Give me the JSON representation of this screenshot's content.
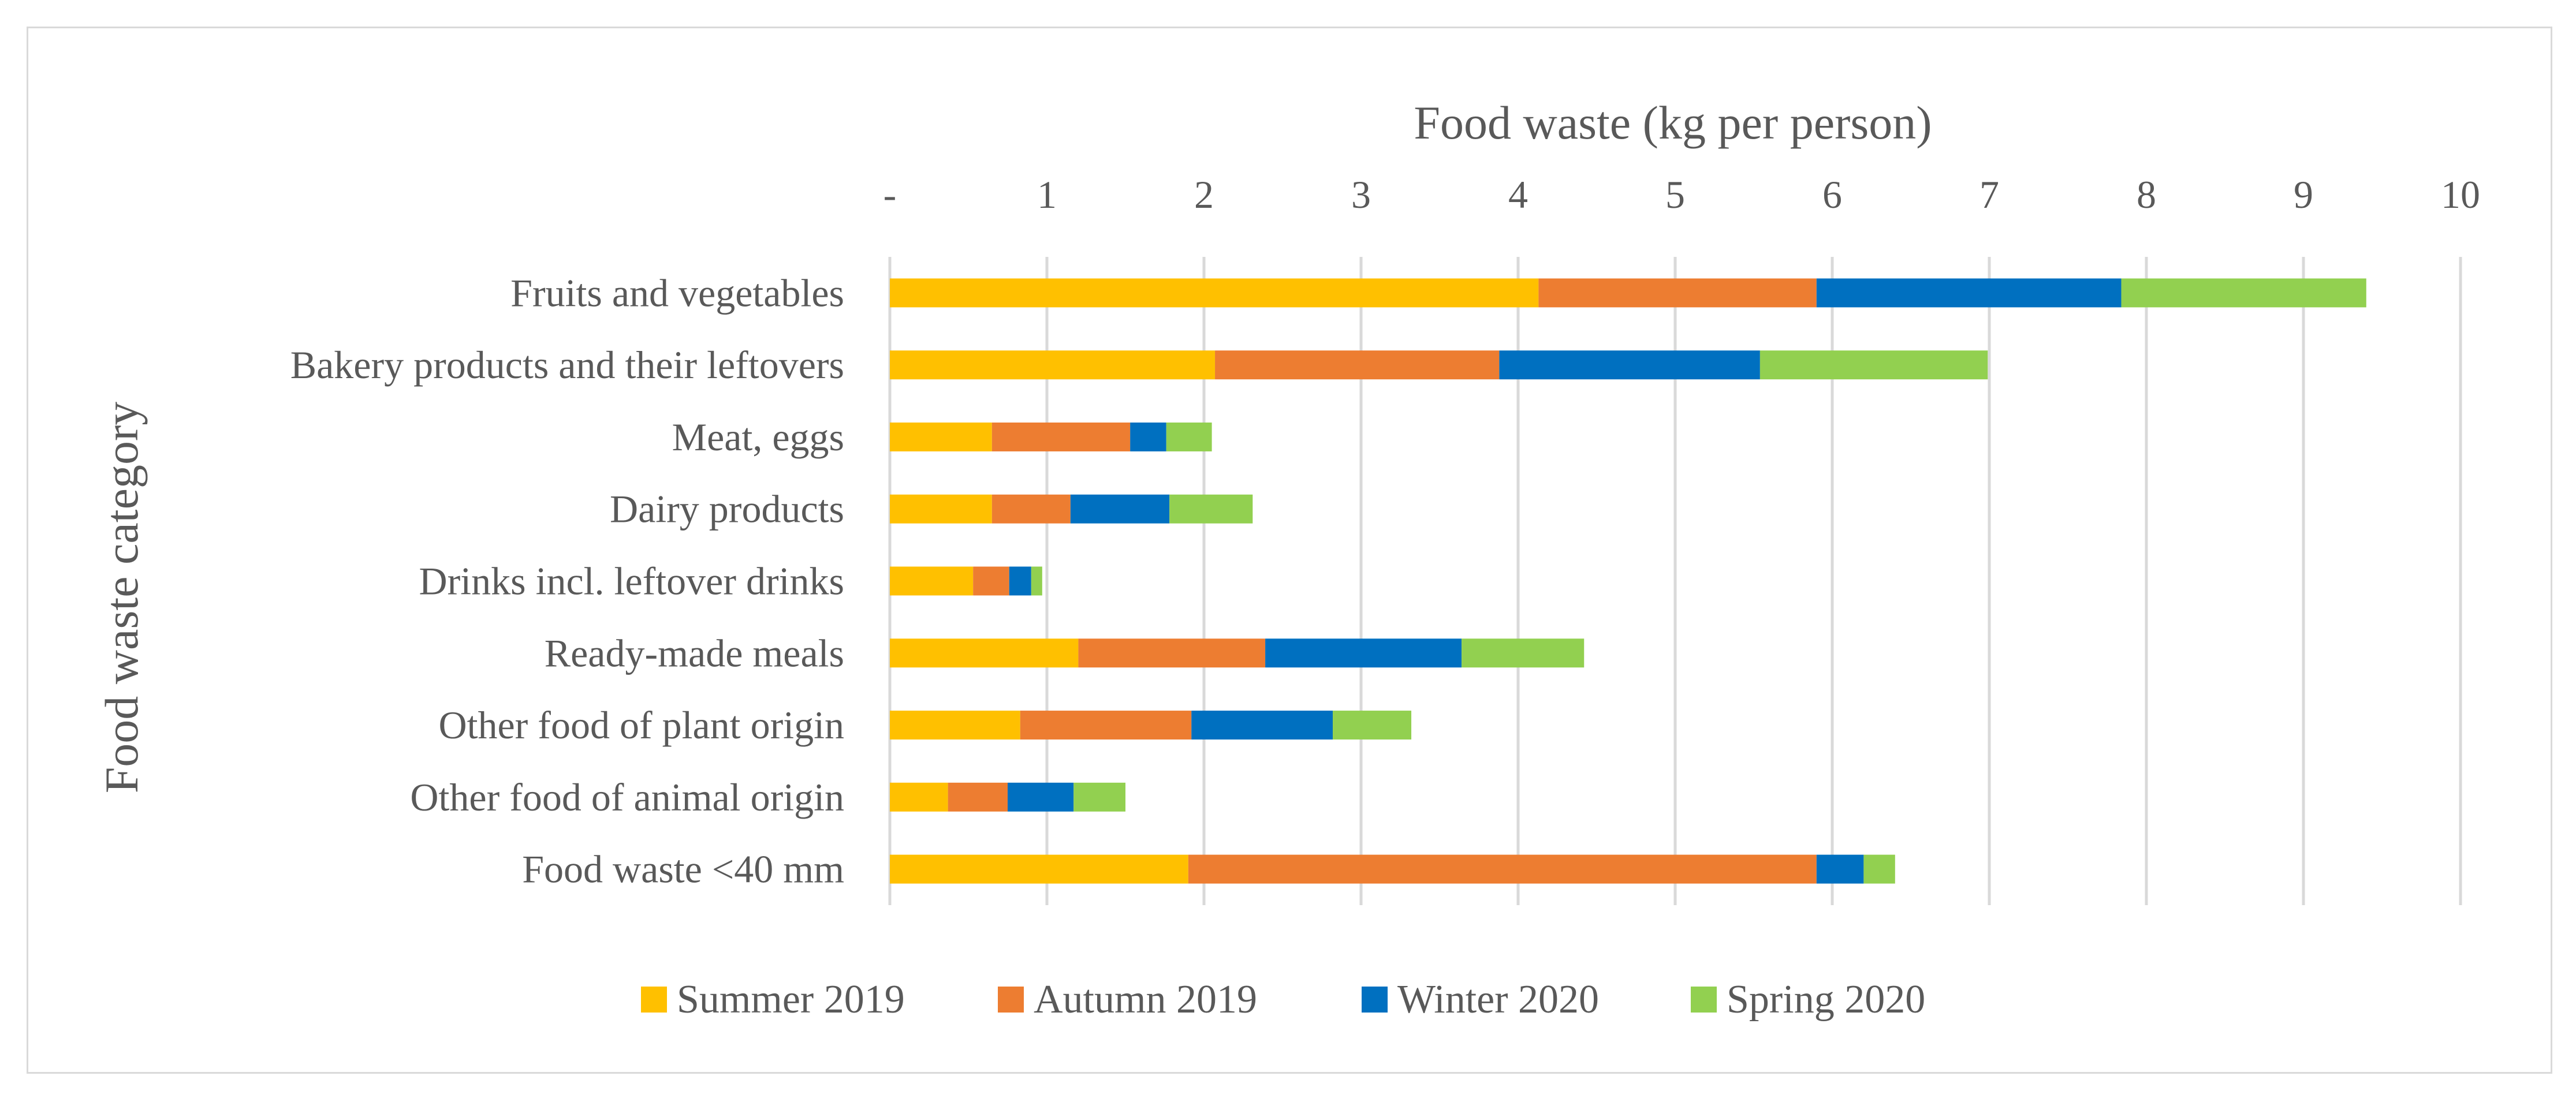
{
  "colors": {
    "summer": "#FFC000",
    "autumn": "#ED7D31",
    "winter": "#0070C0",
    "spring": "#92D050",
    "grid": "#d9d9d9",
    "text": "#595959"
  },
  "chart_data": {
    "type": "bar",
    "orientation": "horizontal",
    "stacked": true,
    "title": "",
    "xlabel": "Food waste (kg per person)",
    "ylabel": "Food waste category",
    "xlim": [
      0,
      10
    ],
    "x_ticks": [
      "-",
      "1",
      "2",
      "3",
      "4",
      "5",
      "6",
      "7",
      "8",
      "9",
      "10"
    ],
    "grid": true,
    "legend_position": "bottom",
    "categories": [
      "Fruits and vegetables",
      "Bakery products and their leftovers",
      "Meat, eggs",
      "Dairy products",
      "Drinks incl. leftover drinks",
      "Ready-made meals",
      "Other food of plant origin",
      "Other food of animal origin",
      "Food waste <40 mm"
    ],
    "series": [
      {
        "name": "Summer 2019",
        "color_key": "summer",
        "values": [
          4.13,
          2.07,
          0.65,
          0.65,
          0.53,
          1.2,
          0.83,
          0.37,
          1.9
        ]
      },
      {
        "name": "Autumn 2019",
        "color_key": "autumn",
        "values": [
          1.77,
          1.81,
          0.88,
          0.5,
          0.23,
          1.19,
          1.09,
          0.38,
          4.0
        ]
      },
      {
        "name": "Winter 2020",
        "color_key": "winter",
        "values": [
          1.94,
          1.66,
          0.23,
          0.63,
          0.14,
          1.25,
          0.9,
          0.42,
          0.3
        ]
      },
      {
        "name": "Spring 2020",
        "color_key": "spring",
        "values": [
          1.56,
          1.45,
          0.29,
          0.53,
          0.07,
          0.78,
          0.5,
          0.33,
          0.2
        ]
      }
    ]
  }
}
